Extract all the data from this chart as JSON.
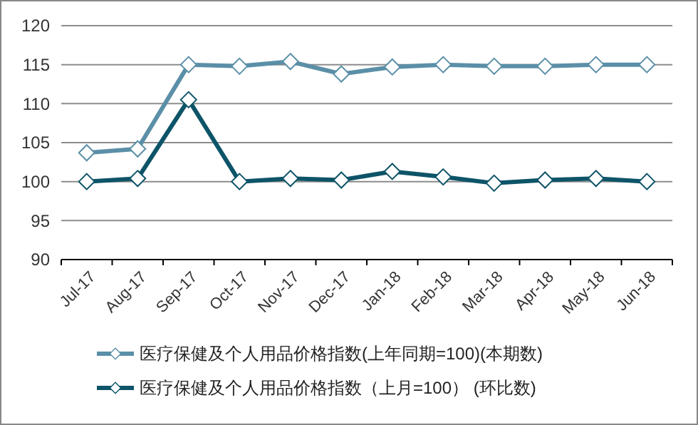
{
  "chart_data": {
    "type": "line",
    "categories": [
      "Jul-17",
      "Aug-17",
      "Sep-17",
      "Oct-17",
      "Nov-17",
      "Dec-17",
      "Jan-18",
      "Feb-18",
      "Mar-18",
      "Apr-18",
      "May-18",
      "Jun-18"
    ],
    "series": [
      {
        "name": "医疗保健及个人用品价格指数(上年同期=100)(本期数)",
        "color": "#5b8fa8",
        "values": [
          103.7,
          104.2,
          115.0,
          114.8,
          115.4,
          113.8,
          114.7,
          115.0,
          114.8,
          114.8,
          115.0,
          115.0
        ]
      },
      {
        "name": "医疗保健及个人用品价格指数（上月=100）  (环比数)",
        "color": "#0e5468",
        "values": [
          100.0,
          100.4,
          110.5,
          100.0,
          100.4,
          100.2,
          101.3,
          100.6,
          99.8,
          100.2,
          100.4,
          100.0
        ]
      }
    ],
    "ylim": [
      90,
      120
    ],
    "yticks": [
      90,
      95,
      100,
      105,
      110,
      115,
      120
    ],
    "grid": "y",
    "legend": "bottom",
    "marker": "diamond"
  }
}
